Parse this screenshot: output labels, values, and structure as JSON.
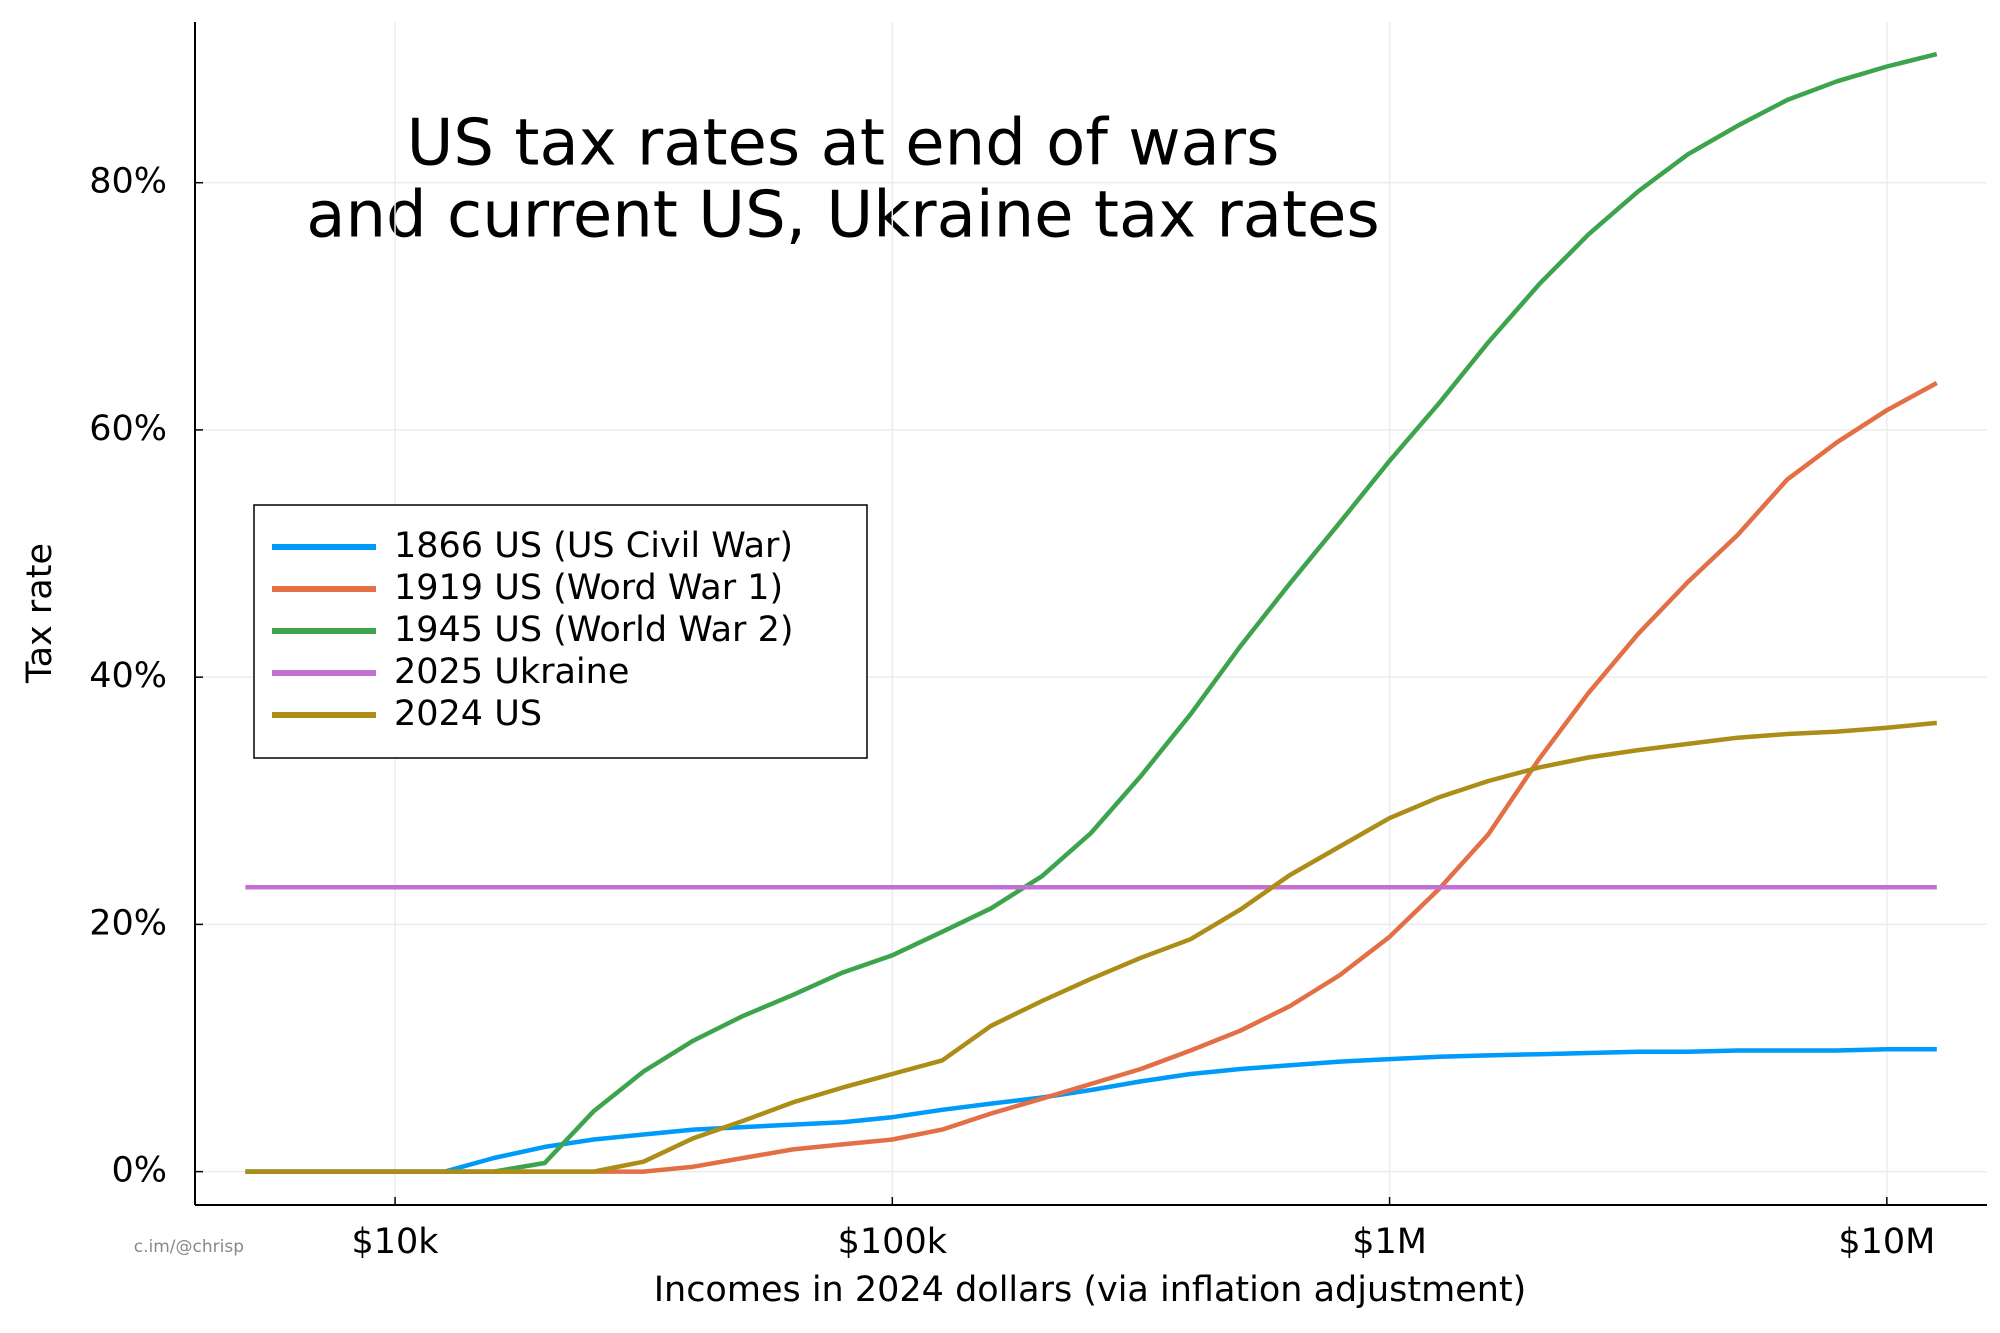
{
  "chart_data": {
    "type": "line",
    "title": [
      "US tax rates at end of wars",
      "and current US, Ukraine tax rates"
    ],
    "x_label": "Incomes in 2024 dollars (via inflation adjustment)",
    "y_label": "Tax rate",
    "watermark": "c.im/@chrisp",
    "x_scale": "log",
    "xlim": [
      3960,
      15900000
    ],
    "xticks": [
      {
        "value": 10000,
        "label": "$10k"
      },
      {
        "value": 100000,
        "label": "$100k"
      },
      {
        "value": 1000000,
        "label": "$1M"
      },
      {
        "value": 10000000,
        "label": "$10M"
      }
    ],
    "ylim": [
      -2.7,
      93
    ],
    "yticks": [
      {
        "value": 0,
        "label": "0%"
      },
      {
        "value": 20,
        "label": "20%"
      },
      {
        "value": 40,
        "label": "40%"
      },
      {
        "value": 60,
        "label": "60%"
      },
      {
        "value": 80,
        "label": "80%"
      }
    ],
    "grid": true,
    "legend": "left",
    "x": [
      5000,
      6300,
      7900,
      10000,
      12600,
      15800,
      20000,
      25100,
      31600,
      39800,
      50100,
      63100,
      79400,
      100000,
      126000,
      158000,
      200000,
      251000,
      316000,
      398000,
      501000,
      631000,
      794000,
      1000000,
      1260000,
      1580000,
      2000000,
      2510000,
      3160000,
      3980000,
      5010000,
      6310000,
      7940000,
      10000000,
      12600000
    ],
    "series": [
      {
        "name": "1866 US (US Civil War)",
        "color": "#009af9",
        "values": [
          0,
          0,
          0,
          0,
          0,
          1.1,
          2.0,
          2.6,
          3.0,
          3.4,
          3.6,
          3.8,
          4.0,
          4.4,
          5.0,
          5.5,
          6.0,
          6.6,
          7.3,
          7.9,
          8.3,
          8.6,
          8.9,
          9.1,
          9.3,
          9.4,
          9.5,
          9.6,
          9.7,
          9.7,
          9.8,
          9.8,
          9.8,
          9.9,
          9.9
        ]
      },
      {
        "name": "1919 US (Word War 1)",
        "color": "#e26f46",
        "values": [
          0,
          0,
          0,
          0,
          0,
          0,
          0,
          0,
          0,
          0.4,
          1.1,
          1.8,
          2.2,
          2.6,
          3.4,
          4.7,
          5.9,
          7.1,
          8.3,
          9.8,
          11.4,
          13.4,
          15.9,
          19.0,
          22.9,
          27.3,
          33.4,
          38.7,
          43.5,
          47.7,
          51.5,
          56,
          59,
          61.6,
          63.8
        ]
      },
      {
        "name": "1945 US (World War 2)",
        "color": "#3da44d",
        "values": [
          0,
          0,
          0,
          0,
          0,
          0,
          0.7,
          4.9,
          8.1,
          10.6,
          12.6,
          14.3,
          16.1,
          17.5,
          19.4,
          21.3,
          23.9,
          27.4,
          32.0,
          37.0,
          42.5,
          47.6,
          52.5,
          57.5,
          62.2,
          67.1,
          71.8,
          75.8,
          79.3,
          82.3,
          84.6,
          86.7,
          88.2,
          89.4,
          90.4
        ]
      },
      {
        "name": "2025 Ukraine",
        "color": "#c271d2",
        "values": [
          23,
          23,
          23,
          23,
          23,
          23,
          23,
          23,
          23,
          23,
          23,
          23,
          23,
          23,
          23,
          23,
          23,
          23,
          23,
          23,
          23,
          23,
          23,
          23,
          23,
          23,
          23,
          23,
          23,
          23,
          23,
          23,
          23,
          23,
          23
        ]
      },
      {
        "name": "2024 US",
        "color": "#ac8d18",
        "values": [
          0,
          0,
          0,
          0,
          0,
          0,
          0,
          0,
          0.8,
          2.7,
          4.1,
          5.6,
          6.8,
          7.9,
          9.0,
          11.8,
          13.8,
          15.6,
          17.3,
          18.8,
          21.2,
          24.0,
          26.3,
          28.6,
          30.3,
          31.6,
          32.7,
          33.5,
          34.1,
          34.6,
          35.1,
          35.4,
          35.6,
          35.9,
          36.3
        ]
      }
    ]
  }
}
